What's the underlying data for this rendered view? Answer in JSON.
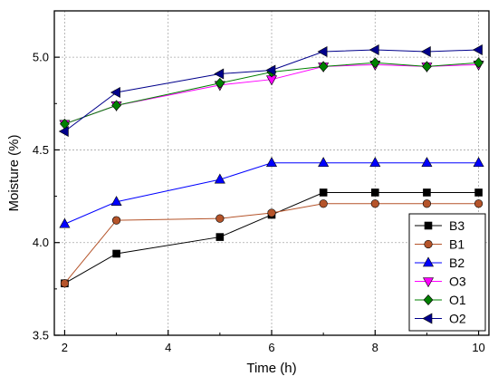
{
  "chart_data": {
    "type": "line",
    "title": "",
    "xlabel": "Time (h)",
    "ylabel": "Moisture (%)",
    "xlim": [
      1.8,
      10.2
    ],
    "ylim": [
      3.5,
      5.25
    ],
    "xticks": [
      2,
      4,
      6,
      8,
      10
    ],
    "xtick_labels": [
      "2",
      "4",
      "6",
      "8",
      "10"
    ],
    "yticks": [
      3.5,
      4.0,
      4.5,
      5.0
    ],
    "ytick_labels": [
      "3.5",
      "4.0",
      "4.5",
      "5.0"
    ],
    "grid": true,
    "legend_position": "bottom-right",
    "series": [
      {
        "name": "B3",
        "color": "#000000",
        "marker": "square",
        "x": [
          2,
          3,
          5,
          6,
          7,
          8,
          9,
          10
        ],
        "y": [
          3.78,
          3.94,
          4.03,
          4.15,
          4.27,
          4.27,
          4.27,
          4.27
        ]
      },
      {
        "name": "B1",
        "color": "#b5542a",
        "marker": "circle",
        "x": [
          2,
          3,
          5,
          6,
          7,
          8,
          9,
          10
        ],
        "y": [
          3.78,
          4.12,
          4.13,
          4.16,
          4.21,
          4.21,
          4.21,
          4.21
        ]
      },
      {
        "name": "B2",
        "color": "#0000ff",
        "marker": "triangle-up",
        "x": [
          2,
          3,
          5,
          6,
          7,
          8,
          9,
          10
        ],
        "y": [
          4.1,
          4.22,
          4.34,
          4.43,
          4.43,
          4.43,
          4.43,
          4.43
        ]
      },
      {
        "name": "O3",
        "color": "#ff00ff",
        "marker": "triangle-down",
        "x": [
          2,
          3,
          5,
          6,
          7,
          8,
          9,
          10
        ],
        "y": [
          4.64,
          4.74,
          4.85,
          4.88,
          4.95,
          4.96,
          4.95,
          4.96
        ]
      },
      {
        "name": "O1",
        "color": "#008000",
        "marker": "diamond",
        "x": [
          2,
          3,
          5,
          6,
          7,
          8,
          9,
          10
        ],
        "y": [
          4.64,
          4.74,
          4.86,
          4.92,
          4.95,
          4.97,
          4.95,
          4.97
        ]
      },
      {
        "name": "O2",
        "color": "#00008b",
        "marker": "triangle-left",
        "x": [
          2,
          3,
          5,
          6,
          7,
          8,
          9,
          10
        ],
        "y": [
          4.6,
          4.81,
          4.91,
          4.93,
          5.03,
          5.04,
          5.03,
          5.04
        ]
      }
    ]
  }
}
